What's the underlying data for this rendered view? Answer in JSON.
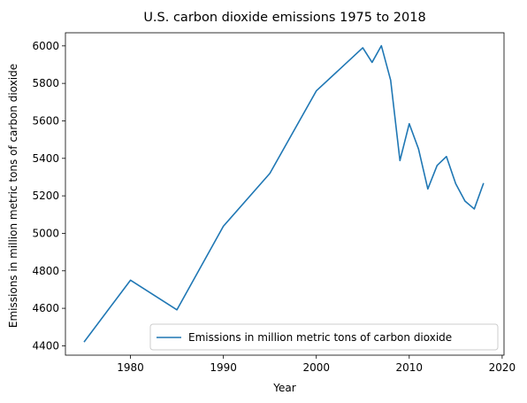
{
  "chart_data": {
    "type": "line",
    "title": "U.S. carbon dioxide emissions 1975 to 2018",
    "xlabel": "Year",
    "ylabel": "Emissions in million metric tons of carbon dioxide",
    "xlim": [
      1973,
      2020.2
    ],
    "ylim": [
      4350,
      6070
    ],
    "xticks": [
      1980,
      1990,
      2000,
      2010,
      2020
    ],
    "yticks": [
      4400,
      4600,
      4800,
      5000,
      5200,
      5400,
      5600,
      5800,
      6000
    ],
    "grid": false,
    "legend_position": "bottom-right",
    "series": [
      {
        "name": "Emissions in million metric tons of carbon dioxide",
        "color": "#1f77b4",
        "x": [
          1975,
          1980,
          1985,
          1990,
          1995,
          2000,
          2005,
          2006,
          2007,
          2008,
          2009,
          2010,
          2011,
          2012,
          2013,
          2014,
          2015,
          2016,
          2017,
          2018
        ],
        "y": [
          4420,
          4750,
          4592,
          5038,
          5320,
          5760,
          5990,
          5912,
          6001,
          5817,
          5388,
          5585,
          5450,
          5237,
          5362,
          5410,
          5265,
          5172,
          5130,
          5268
        ]
      }
    ]
  }
}
